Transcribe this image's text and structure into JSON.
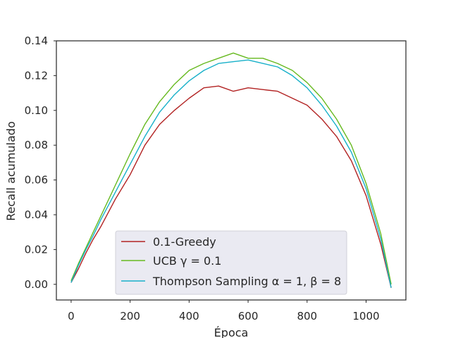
{
  "chart_data": {
    "type": "line",
    "title": "",
    "xlabel": "Época",
    "ylabel": "Recall acumulado",
    "xlim": [
      -50,
      1135
    ],
    "ylim": [
      -0.009,
      0.14
    ],
    "xticks": [
      0,
      200,
      400,
      600,
      800,
      1000
    ],
    "yticks": [
      0.0,
      0.02,
      0.04,
      0.06,
      0.08,
      0.1,
      0.12,
      0.14
    ],
    "xtick_labels": [
      "0",
      "200",
      "400",
      "600",
      "800",
      "1000"
    ],
    "ytick_labels": [
      "0.00",
      "0.02",
      "0.04",
      "0.06",
      "0.08",
      "0.10",
      "0.12",
      "0.14"
    ],
    "grid": false,
    "legend_position": "lower-center",
    "series": [
      {
        "name": "0.1-Greedy",
        "color": "#b22222",
        "x": [
          0,
          25,
          50,
          75,
          100,
          150,
          200,
          250,
          300,
          350,
          400,
          450,
          500,
          550,
          600,
          650,
          700,
          750,
          800,
          850,
          900,
          950,
          1000,
          1050,
          1085
        ],
        "y": [
          0.001,
          0.009,
          0.018,
          0.026,
          0.033,
          0.049,
          0.063,
          0.08,
          0.092,
          0.1,
          0.107,
          0.113,
          0.114,
          0.111,
          0.113,
          0.112,
          0.111,
          0.107,
          0.103,
          0.095,
          0.085,
          0.071,
          0.051,
          0.023,
          -0.002
        ]
      },
      {
        "name": "UCB γ = 0.1",
        "color": "#66b91f",
        "x": [
          0,
          25,
          50,
          75,
          100,
          150,
          200,
          250,
          300,
          350,
          400,
          450,
          500,
          550,
          600,
          650,
          700,
          750,
          800,
          850,
          900,
          950,
          1000,
          1050,
          1085
        ],
        "y": [
          0.002,
          0.012,
          0.021,
          0.03,
          0.039,
          0.057,
          0.075,
          0.092,
          0.105,
          0.115,
          0.123,
          0.127,
          0.13,
          0.133,
          0.13,
          0.13,
          0.127,
          0.123,
          0.116,
          0.107,
          0.095,
          0.08,
          0.058,
          0.029,
          0.0
        ]
      },
      {
        "name": "Thompson Sampling α = 1, β = 8",
        "color": "#17b0c9",
        "x": [
          0,
          25,
          50,
          75,
          100,
          150,
          200,
          250,
          300,
          350,
          400,
          450,
          500,
          550,
          600,
          650,
          700,
          750,
          800,
          850,
          900,
          950,
          1000,
          1050,
          1085
        ],
        "y": [
          0.001,
          0.011,
          0.02,
          0.028,
          0.037,
          0.053,
          0.069,
          0.085,
          0.099,
          0.109,
          0.117,
          0.123,
          0.127,
          0.128,
          0.129,
          0.127,
          0.125,
          0.12,
          0.113,
          0.103,
          0.091,
          0.076,
          0.055,
          0.026,
          -0.002
        ]
      }
    ]
  },
  "legend": {
    "entries": [
      {
        "text": "0.1-Greedy"
      },
      {
        "text": "UCB γ = 0.1"
      },
      {
        "text": "Thompson Sampling α = 1, β = 8"
      }
    ]
  }
}
